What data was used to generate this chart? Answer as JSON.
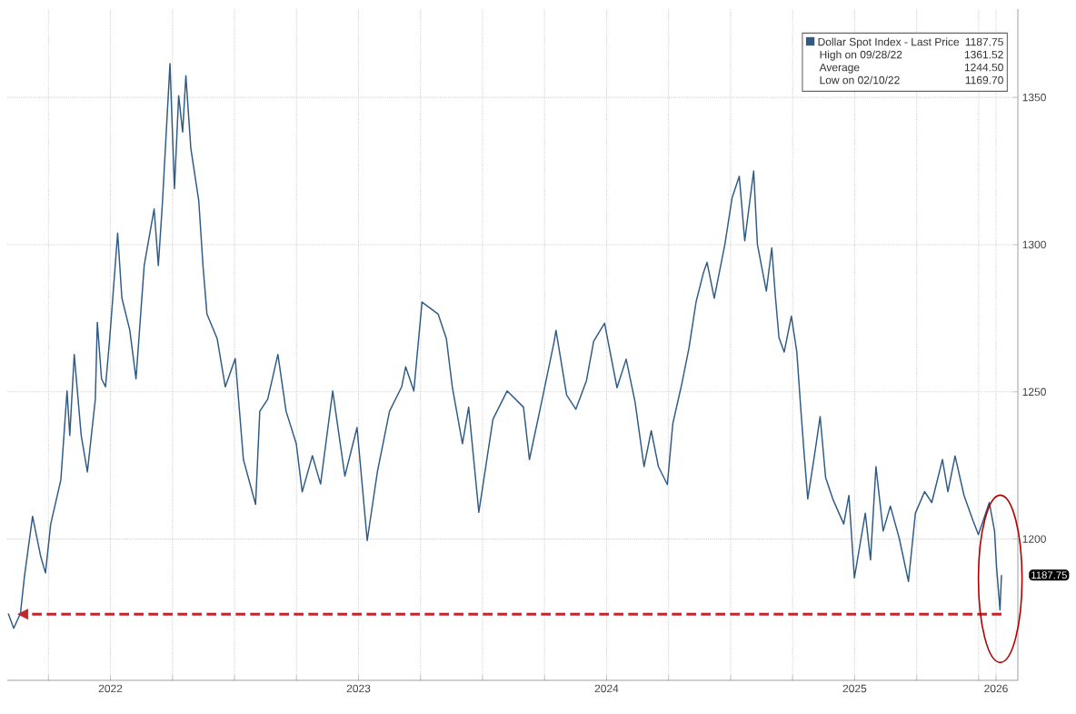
{
  "chart_data": {
    "type": "line",
    "series": [
      {
        "name": "Dollar Spot Index - Last Price",
        "color": "#2f5b85",
        "x": [
          2022.088,
          2022.11,
          2022.137,
          2022.153,
          2022.186,
          2022.219,
          2022.238,
          2022.259,
          2022.3,
          2022.325,
          2022.336,
          2022.354,
          2022.382,
          2022.407,
          2022.439,
          2022.447,
          2022.464,
          2022.48,
          2022.497,
          2022.529,
          2022.546,
          2022.578,
          2022.603,
          2022.636,
          2022.676,
          2022.693,
          2022.709,
          2022.74,
          2022.758,
          2022.775,
          2022.791,
          2022.804,
          2022.824,
          2022.856,
          2022.873,
          2022.889,
          2022.93,
          2022.963,
          2023.003,
          2023.036,
          2023.085,
          2023.102,
          2023.134,
          2023.175,
          2023.208,
          2023.249,
          2023.273,
          2023.314,
          2023.347,
          2023.396,
          2023.445,
          2023.494,
          2023.535,
          2023.576,
          2023.625,
          2023.674,
          2023.69,
          2023.723,
          2023.756,
          2023.821,
          2023.854,
          2023.878,
          2023.919,
          2023.944,
          2023.985,
          2024.042,
          2024.099,
          2024.165,
          2024.189,
          2024.238,
          2024.289,
          2024.296,
          2024.339,
          2024.376,
          2024.419,
          2024.448,
          2024.492,
          2024.542,
          2024.579,
          2024.615,
          2024.651,
          2024.68,
          2024.709,
          2024.745,
          2024.767,
          2024.803,
          2024.832,
          2024.861,
          2024.89,
          2024.905,
          2024.934,
          2024.977,
          2025.006,
          2025.035,
          2025.057,
          2025.093,
          2025.108,
          2025.144,
          2025.166,
          2025.18,
          2025.195,
          2025.216,
          2025.245,
          2025.267,
          2025.282,
          2025.296,
          2025.311,
          2025.34,
          2025.361,
          2025.383,
          2025.412,
          2025.456,
          2025.477,
          2025.499,
          2025.543,
          2025.564,
          2025.586,
          2025.615,
          2025.644,
          2025.68,
          2025.717,
          2025.745,
          2025.782,
          2025.811,
          2025.854,
          2025.876,
          2025.905,
          2025.941,
          2025.977,
          2025.999,
          2026.043,
          2026.064,
          2026.072,
          2026.086,
          2026.092
        ],
        "values": [
          1174.7,
          1169.7,
          1174.7,
          1187.1,
          1207.7,
          1194.0,
          1188.5,
          1205.0,
          1220.1,
          1250.3,
          1235.2,
          1262.7,
          1235.2,
          1222.8,
          1247.5,
          1273.6,
          1254.4,
          1251.7,
          1268.1,
          1303.9,
          1281.9,
          1270.9,
          1254.4,
          1292.9,
          1312.1,
          1292.9,
          1313.5,
          1361.5,
          1319.0,
          1350.6,
          1338.2,
          1357.4,
          1332.7,
          1314.9,
          1292.9,
          1276.4,
          1268.1,
          1251.7,
          1261.3,
          1227.0,
          1211.8,
          1243.4,
          1247.5,
          1262.7,
          1243.4,
          1232.4,
          1216.0,
          1228.3,
          1218.7,
          1250.3,
          1221.4,
          1237.9,
          1199.5,
          1222.8,
          1243.4,
          1251.7,
          1258.5,
          1250.3,
          1280.5,
          1276.4,
          1268.1,
          1251.7,
          1232.4,
          1244.8,
          1209.1,
          1240.7,
          1250.3,
          1244.8,
          1227.0,
          1246.5,
          1267.2,
          1270.9,
          1248.9,
          1244.1,
          1253.8,
          1267.2,
          1273.3,
          1251.4,
          1261.1,
          1246.5,
          1224.6,
          1236.8,
          1224.6,
          1218.5,
          1239.2,
          1252.6,
          1264.8,
          1280.6,
          1290.3,
          1294.0,
          1281.8,
          1300.1,
          1315.9,
          1323.2,
          1301.3,
          1325.0,
          1300.1,
          1284.2,
          1298.9,
          1283.0,
          1268.4,
          1263.5,
          1275.7,
          1263.5,
          1245.3,
          1229.5,
          1213.6,
          1229.5,
          1241.6,
          1220.9,
          1213.6,
          1205.1,
          1214.8,
          1186.8,
          1208.8,
          1192.9,
          1224.6,
          1202.7,
          1211.2,
          1200.2,
          1185.6,
          1208.8,
          1216.1,
          1212.4,
          1227.0,
          1216.1,
          1228.2,
          1214.8,
          1206.3,
          1201.5,
          1212.4,
          1202.7,
          1190.5,
          1175.9,
          1187.75
        ]
      }
    ],
    "xlim": [
      2022.084,
      2026.158
    ],
    "xticks": [
      {
        "value": 2022.25,
        "label": null
      },
      {
        "value": 2022.5,
        "label": "2022"
      },
      {
        "value": 2022.75,
        "label": null
      },
      {
        "value": 2023,
        "label": null
      },
      {
        "value": 2023.25,
        "label": null
      },
      {
        "value": 2023.5,
        "label": "2023"
      },
      {
        "value": 2023.75,
        "label": null
      },
      {
        "value": 2024,
        "label": null
      },
      {
        "value": 2024.25,
        "label": null
      },
      {
        "value": 2024.5,
        "label": "2024"
      },
      {
        "value": 2024.75,
        "label": null
      },
      {
        "value": 2025,
        "label": null
      },
      {
        "value": 2025.25,
        "label": null
      },
      {
        "value": 2025.5,
        "label": "2025"
      },
      {
        "value": 2025.75,
        "label": null
      },
      {
        "value": 2026,
        "label": null
      },
      {
        "value": 2026.07,
        "label": "2026"
      }
    ],
    "ylim": [
      1152,
      1380
    ],
    "yticks": [
      1200,
      1250,
      1300,
      1350
    ],
    "grid": true,
    "legend": "top right",
    "ref_lines": [
      {
        "axis": "y",
        "value": 1174.5,
        "color": "#c0282d",
        "line_style": "dashed"
      }
    ],
    "annotations": [
      {
        "text": "1187.75",
        "x": 2026.092,
        "y": 1187.75
      },
      "1187.75",
      "High on 09/28/22",
      "1361.52",
      "Average",
      "1244.50",
      "Low on 02/10/22",
      "1169.70"
    ]
  }
}
